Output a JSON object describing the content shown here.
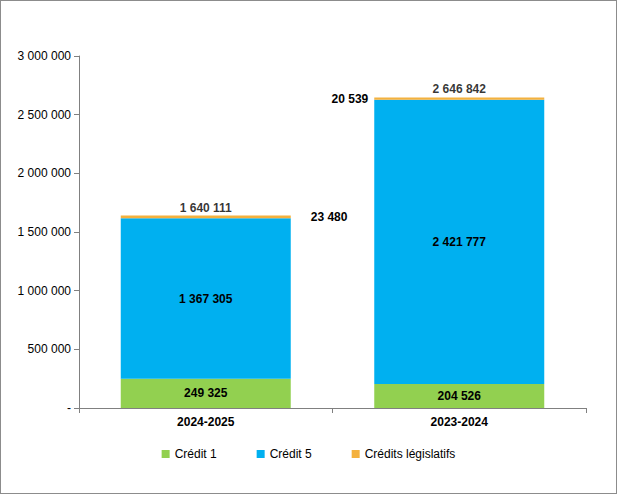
{
  "chart_data": {
    "type": "bar",
    "stacked": true,
    "data_labels": true,
    "grid": false,
    "legend": "bottom",
    "categories": [
      "2024-2025",
      "2023-2024"
    ],
    "series": [
      {
        "name": "Crédit 1",
        "color": "#92D050",
        "values": [
          249325,
          204526
        ],
        "value_labels": [
          "249 325",
          "204 526"
        ]
      },
      {
        "name": "Crédit 5",
        "color": "#00B0F0",
        "values": [
          1367305,
          2421777
        ],
        "value_labels": [
          "1 367 305",
          "2 421 777"
        ]
      },
      {
        "name": "Crédits législatifs",
        "color": "#F4B13E",
        "values": [
          23480,
          20539
        ],
        "value_labels": [
          "23 480",
          "20 539"
        ]
      }
    ],
    "totals": {
      "values": [
        1640111,
        2646842
      ],
      "value_labels": [
        "1 640 111",
        "2 646 842"
      ]
    },
    "ylim": [
      0,
      3000000
    ],
    "yticks": [
      {
        "value": 0,
        "label": "-"
      },
      {
        "value": 500000,
        "label": "500 000"
      },
      {
        "value": 1000000,
        "label": "1 000 000"
      },
      {
        "value": 1500000,
        "label": "1 500 000"
      },
      {
        "value": 2000000,
        "label": "2 000 000"
      },
      {
        "value": 2500000,
        "label": "2 500 000"
      },
      {
        "value": 3000000,
        "label": "3 000 000"
      }
    ]
  }
}
